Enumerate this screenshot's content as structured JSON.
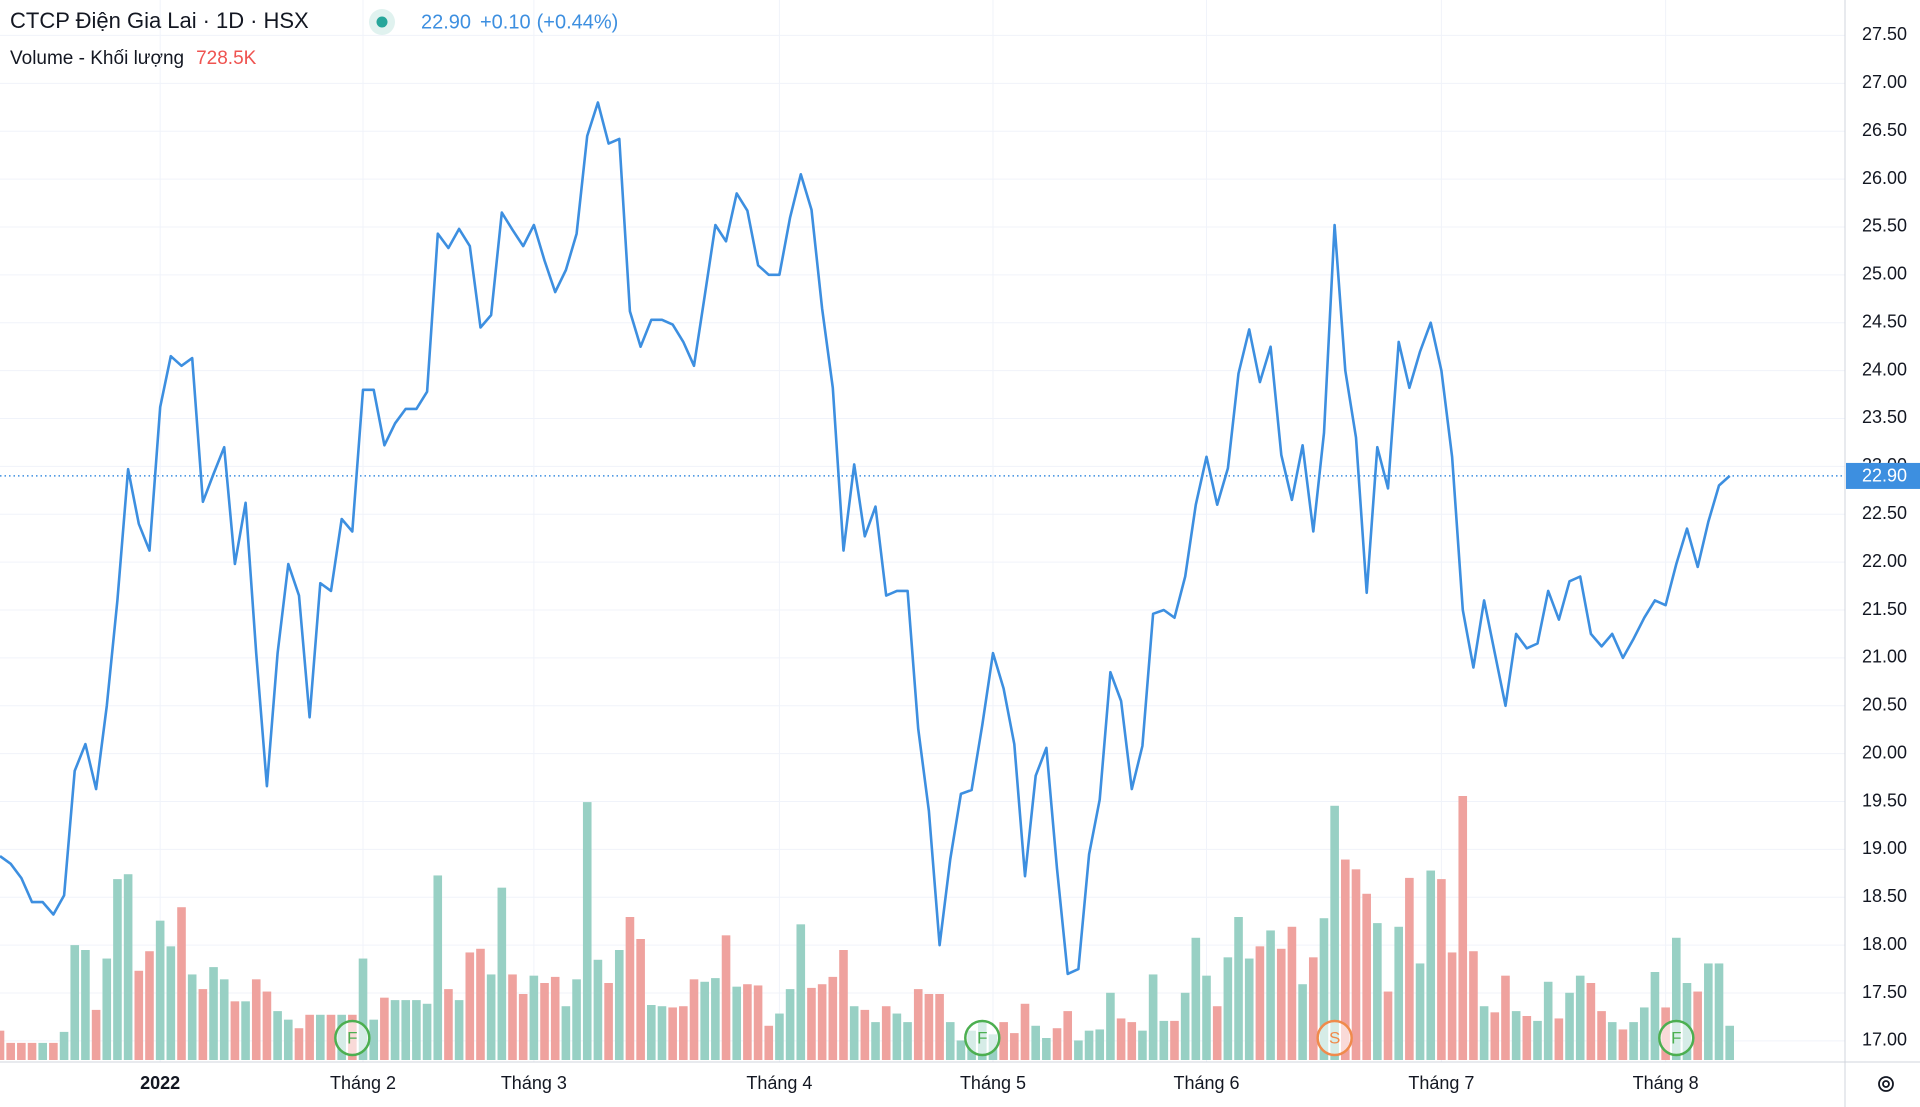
{
  "chart_data": {
    "type": "line",
    "title": "CTCP Điện Gia Lai",
    "interval": "1D",
    "exchange": "HSX",
    "last_price": {
      "value": 22.9,
      "label": "22.90"
    },
    "change": "+0.10",
    "change_percent": "(+0.44%)",
    "color": "#3d8fe0",
    "values": [
      18.93,
      18.85,
      18.7,
      18.45,
      18.45,
      18.32,
      18.52,
      19.82,
      20.1,
      19.63,
      20.5,
      21.6,
      22.97,
      22.4,
      22.12,
      23.62,
      24.15,
      24.05,
      24.13,
      22.63,
      22.92,
      23.2,
      21.98,
      22.62,
      21.05,
      19.66,
      21.05,
      21.98,
      21.65,
      20.38,
      21.78,
      21.7,
      22.45,
      22.32,
      23.8,
      23.8,
      23.22,
      23.45,
      23.6,
      23.6,
      23.78,
      25.43,
      25.28,
      25.48,
      25.3,
      24.45,
      24.58,
      25.65,
      25.47,
      25.3,
      25.52,
      25.15,
      24.82,
      25.05,
      25.43,
      26.45,
      26.8,
      26.37,
      26.42,
      24.62,
      24.25,
      24.53,
      24.53,
      24.48,
      24.3,
      24.05,
      24.78,
      25.52,
      25.35,
      25.85,
      25.67,
      25.1,
      25.0,
      25.0,
      25.6,
      26.05,
      25.68,
      24.65,
      23.82,
      22.12,
      23.02,
      22.27,
      22.58,
      21.65,
      21.7,
      21.7,
      20.26,
      19.4,
      18.0,
      18.9,
      19.58,
      19.62,
      20.3,
      21.05,
      20.68,
      20.1,
      18.72,
      19.77,
      20.06,
      18.8,
      17.7,
      17.75,
      18.95,
      19.52,
      20.85,
      20.55,
      19.63,
      20.08,
      21.46,
      21.5,
      21.42,
      21.85,
      22.6,
      23.1,
      22.6,
      22.98,
      23.97,
      24.43,
      23.88,
      24.25,
      23.12,
      22.65,
      23.22,
      22.32,
      23.35,
      25.52,
      24.0,
      23.3,
      21.68,
      23.2,
      22.77,
      24.3,
      23.82,
      24.2,
      24.5,
      24.0,
      23.1,
      21.5,
      20.9,
      21.6,
      21.05,
      20.5,
      21.25,
      21.1,
      21.15,
      21.7,
      21.4,
      21.8,
      21.85,
      21.25,
      21.12,
      21.25,
      21.0,
      21.2,
      21.42,
      21.6,
      21.55,
      21.98,
      22.35,
      21.95,
      22.42,
      22.8,
      22.9
    ],
    "volume": {
      "name": "Volume - Khối lượng",
      "value_label": "728.5K",
      "up_color": "#98d0c4",
      "down_color": "#efa29e",
      "values": [
        624,
        364,
        364,
        364,
        364,
        364,
        598,
        2444,
        2340,
        1066,
        2158,
        3848,
        3952,
        1898,
        2314,
        2964,
        2418,
        3250,
        1820,
        1508,
        1976,
        1716,
        1248,
        1248,
        1716,
        1456,
        1040,
        858,
        676,
        962,
        962,
        962,
        962,
        962,
        2158,
        858,
        1326,
        1274,
        1274,
        1274,
        1196,
        3926,
        1508,
        1274,
        2288,
        2366,
        1820,
        3666,
        1820,
        1404,
        1794,
        1638,
        1768,
        1144,
        1716,
        5486,
        2132,
        1638,
        2340,
        3042,
        2574,
        1170,
        1144,
        1118,
        1144,
        1716,
        1664,
        1742,
        2652,
        1560,
        1612,
        1586,
        728,
        988,
        1508,
        2886,
        1534,
        1612,
        1768,
        2340,
        1144,
        1066,
        806,
        1144,
        988,
        806,
        1508,
        1404,
        1404,
        806,
        416,
        624,
        806,
        546,
        806,
        572,
        1196,
        728,
        468,
        676,
        1040,
        416,
        624,
        650,
        1430,
        884,
        806,
        624,
        1820,
        832,
        832,
        1430,
        2600,
        1794,
        1144,
        2184,
        3042,
        2158,
        2418,
        2756,
        2366,
        2834,
        1612,
        2184,
        3016,
        5408,
        4264,
        4056,
        3536,
        2912,
        1456,
        2834,
        3874,
        2054,
        4030,
        3848,
        2288,
        5616,
        2314,
        1144,
        1014,
        1794,
        1040,
        936,
        832,
        1664,
        884,
        1430,
        1794,
        1638,
        1040,
        806,
        650,
        806,
        1118,
        1872,
        1118,
        2600,
        1638,
        1456,
        2054,
        2054,
        728.5
      ]
    },
    "events": [
      {
        "x": 33,
        "label": "F",
        "color": "#4caf50"
      },
      {
        "x": 92,
        "label": "F",
        "color": "#4caf50"
      },
      {
        "x": 125,
        "label": "S",
        "color": "#f08a4b"
      },
      {
        "x": 157,
        "label": "F",
        "color": "#4caf50"
      }
    ],
    "xlim": [
      0,
      172.8
    ],
    "xticks": [
      {
        "value": 15,
        "label": "2022"
      },
      {
        "value": 34,
        "label": "Tháng 2"
      },
      {
        "value": 50,
        "label": "Tháng 3"
      },
      {
        "value": 73,
        "label": "Tháng 4"
      },
      {
        "value": 93,
        "label": "Tháng 5"
      },
      {
        "value": 113,
        "label": "Tháng 6"
      },
      {
        "value": 135,
        "label": "Tháng 7"
      },
      {
        "value": 156,
        "label": "Tháng 8"
      }
    ],
    "ylim": [
      16.78,
      27.87
    ],
    "yticks": [
      {
        "value": 17,
        "label": "17.00"
      },
      {
        "value": 17.5,
        "label": "17.50"
      },
      {
        "value": 18,
        "label": "18.00"
      },
      {
        "value": 18.5,
        "label": "18.50"
      },
      {
        "value": 19,
        "label": "19.00"
      },
      {
        "value": 19.5,
        "label": "19.50"
      },
      {
        "value": 20,
        "label": "20.00"
      },
      {
        "value": 20.5,
        "label": "20.50"
      },
      {
        "value": 21,
        "label": "21.00"
      },
      {
        "value": 21.5,
        "label": "21.50"
      },
      {
        "value": 22,
        "label": "22.00"
      },
      {
        "value": 22.5,
        "label": "22.50"
      },
      {
        "value": 23,
        "label": "23.00"
      },
      {
        "value": 23.5,
        "label": "23.50"
      },
      {
        "value": 24,
        "label": "24.00"
      },
      {
        "value": 24.5,
        "label": "24.50"
      },
      {
        "value": 25,
        "label": "25.00"
      },
      {
        "value": 25.5,
        "label": "25.50"
      },
      {
        "value": 26,
        "label": "26.00"
      },
      {
        "value": 26.5,
        "label": "26.50"
      },
      {
        "value": 27,
        "label": "27.00"
      },
      {
        "value": 27.5,
        "label": "27.50"
      }
    ],
    "grid": true
  }
}
